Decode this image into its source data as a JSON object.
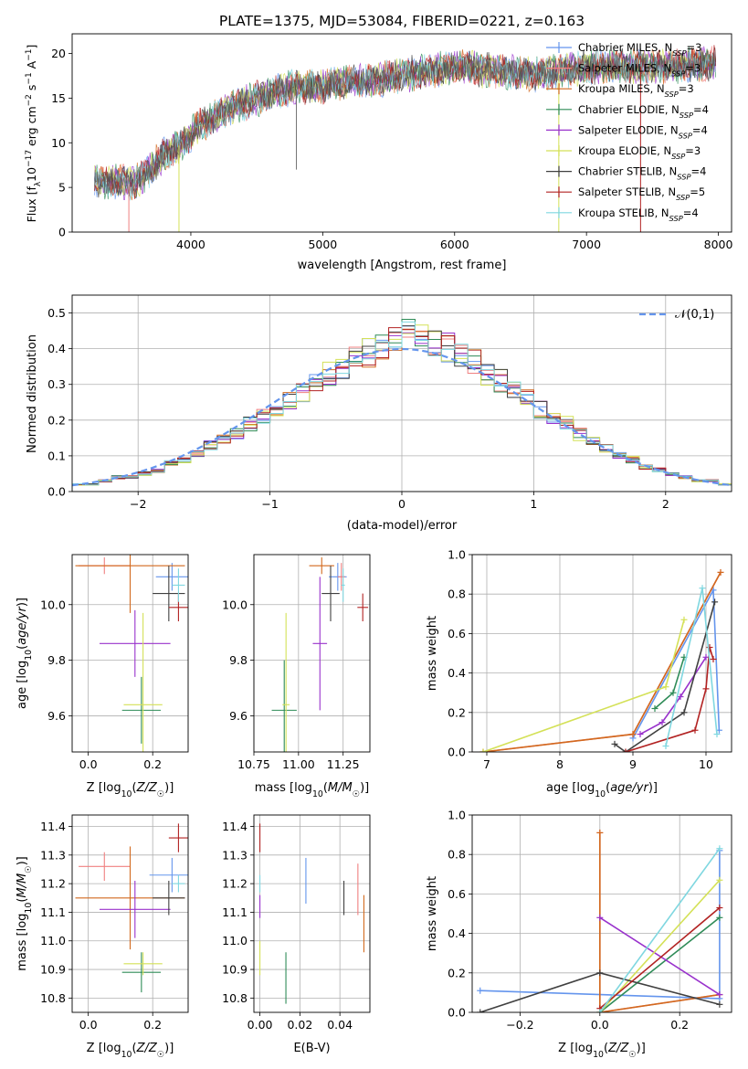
{
  "title": "PLATE=1375, MJD=53084, FIBERID=0221, z=0.163",
  "colors": {
    "chabrier_miles": "#6495ED",
    "salpeter_miles": "#F08080",
    "kroupa_miles": "#D2691E",
    "chabrier_elodie": "#2E8B57",
    "salpeter_elodie": "#9932CC",
    "kroupa_elodie": "#D4E157",
    "chabrier_stelib": "#404040",
    "salpeter_stelib": "#B22222",
    "kroupa_stelib": "#7FD7E0",
    "gauss": "#6495ED"
  },
  "chart_data": [
    {
      "id": "spectrum",
      "type": "line",
      "title": "PLATE=1375, MJD=53084, FIBERID=0221, z=0.163",
      "xlabel": "wavelength [Angstrom, rest frame]",
      "ylabel": "Flux [f_λ 10^-17 erg cm^-2 s^-1 A^-1]",
      "xlim": [
        3100,
        8100
      ],
      "ylim": [
        0,
        22.2
      ],
      "xticks": [
        4000,
        5000,
        6000,
        7000,
        8000
      ],
      "yticks": [
        0,
        5,
        10,
        15,
        20
      ],
      "grid": false,
      "legend_position": "right",
      "spectrum_trend": {
        "x": [
          3270,
          3350,
          3450,
          3550,
          3650,
          3750,
          3850,
          3950,
          4050,
          4150,
          4300,
          4450,
          4600,
          4800,
          5000,
          5200,
          5400,
          5600,
          5800,
          6000,
          6200,
          6400,
          6600,
          6800,
          7000,
          7200,
          7400,
          7600,
          7800,
          7980
        ],
        "y": [
          6.0,
          5.4,
          5.8,
          5.3,
          6.4,
          8.0,
          9.2,
          10.0,
          11.8,
          12.5,
          14.0,
          14.6,
          15.5,
          16.3,
          16.3,
          16.8,
          17.0,
          17.6,
          18.0,
          18.5,
          18.2,
          17.9,
          17.7,
          18.0,
          18.4,
          18.6,
          18.5,
          18.6,
          18.7,
          18.9
        ]
      },
      "series": [
        {
          "name": "Chabrier MILES, N_SSP=3",
          "color_key": "chabrier_miles"
        },
        {
          "name": "Salpeter MILES, N_SSP=3",
          "color_key": "salpeter_miles"
        },
        {
          "name": "Kroupa MILES, N_SSP=3",
          "color_key": "kroupa_miles"
        },
        {
          "name": "Chabrier ELODIE, N_SSP=4",
          "color_key": "chabrier_elodie"
        },
        {
          "name": "Salpeter ELODIE, N_SSP=4",
          "color_key": "salpeter_elodie"
        },
        {
          "name": "Kroupa ELODIE, N_SSP=3",
          "color_key": "kroupa_elodie"
        },
        {
          "name": "Chabrier STELIB, N_SSP=4",
          "color_key": "chabrier_stelib"
        },
        {
          "name": "Salpeter STELIB, N_SSP=5",
          "color_key": "salpeter_stelib"
        },
        {
          "name": "Kroupa STELIB, N_SSP=4",
          "color_key": "kroupa_stelib"
        }
      ]
    },
    {
      "id": "residuals",
      "type": "histogram",
      "xlabel": "(data-model)/error",
      "ylabel": "Normed distribution",
      "xlim": [
        -2.5,
        2.5
      ],
      "ylim": [
        0,
        0.55
      ],
      "xticks": [
        -2,
        -1,
        0,
        1,
        2
      ],
      "yticks": [
        0.0,
        0.1,
        0.2,
        0.3,
        0.4,
        0.5
      ],
      "grid": true,
      "legend": "𝒩(0,1)",
      "legend_position": "top-right",
      "bins": [
        -2.5,
        -2.4,
        -2.3,
        -2.2,
        -2.1,
        -2.0,
        -1.9,
        -1.8,
        -1.7,
        -1.6,
        -1.5,
        -1.4,
        -1.3,
        -1.2,
        -1.1,
        -1.0,
        -0.9,
        -0.8,
        -0.7,
        -0.6,
        -0.5,
        -0.4,
        -0.3,
        -0.2,
        -0.1,
        0.0,
        0.1,
        0.2,
        0.3,
        0.4,
        0.5,
        0.6,
        0.7,
        0.8,
        0.9,
        1.0,
        1.1,
        1.2,
        1.3,
        1.4,
        1.5,
        1.6,
        1.7,
        1.8,
        1.9,
        2.0,
        2.1,
        2.2,
        2.3,
        2.4,
        2.5
      ],
      "density": [
        0.02,
        0.02,
        0.03,
        0.04,
        0.04,
        0.05,
        0.06,
        0.08,
        0.09,
        0.11,
        0.13,
        0.15,
        0.16,
        0.19,
        0.21,
        0.23,
        0.26,
        0.28,
        0.3,
        0.33,
        0.35,
        0.37,
        0.39,
        0.41,
        0.43,
        0.45,
        0.43,
        0.41,
        0.4,
        0.38,
        0.36,
        0.33,
        0.31,
        0.28,
        0.26,
        0.23,
        0.21,
        0.19,
        0.16,
        0.14,
        0.12,
        0.1,
        0.09,
        0.07,
        0.06,
        0.05,
        0.04,
        0.03,
        0.03,
        0.02
      ]
    },
    {
      "id": "age_vs_Z",
      "type": "errorbar",
      "xlabel": "Z [log10(Z/Z☉)]",
      "ylabel": "age [log10(age/yr)]",
      "xlim": [
        -0.05,
        0.31
      ],
      "ylim": [
        9.47,
        10.18
      ],
      "xticks": [
        0.0,
        0.2
      ],
      "xticklabels": [
        "0.0",
        "0.2"
      ],
      "yticks": [
        9.6,
        9.8,
        10.0
      ],
      "grid": true,
      "points": [
        {
          "color_key": "chabrier_miles",
          "x": 0.26,
          "y": 10.1,
          "xerr": 0.05,
          "yerr": 0.05
        },
        {
          "color_key": "salpeter_miles",
          "x": 0.05,
          "y": 10.14,
          "xerr": 0.08,
          "yerr": 0.03
        },
        {
          "color_key": "kroupa_miles",
          "x": 0.13,
          "y": 10.14,
          "xerr": 0.17,
          "yerr": 0.17
        },
        {
          "color_key": "chabrier_elodie",
          "x": 0.165,
          "y": 9.62,
          "xerr": 0.06,
          "yerr": 0.12
        },
        {
          "color_key": "salpeter_elodie",
          "x": 0.145,
          "y": 9.86,
          "xerr": 0.11,
          "yerr": 0.12
        },
        {
          "color_key": "kroupa_elodie",
          "x": 0.17,
          "y": 9.64,
          "xerr": 0.06,
          "yerr": 0.33
        },
        {
          "color_key": "chabrier_stelib",
          "x": 0.25,
          "y": 10.04,
          "xerr": 0.05,
          "yerr": 0.1
        },
        {
          "color_key": "salpeter_stelib",
          "x": 0.28,
          "y": 9.99,
          "xerr": 0.03,
          "yerr": 0.05
        },
        {
          "color_key": "kroupa_stelib",
          "x": 0.28,
          "y": 10.07,
          "xerr": 0.02,
          "yerr": 0.06
        }
      ]
    },
    {
      "id": "age_vs_mass",
      "type": "errorbar",
      "xlabel": "mass [log10(M/M☉)]",
      "xlim": [
        10.75,
        11.4
      ],
      "ylim": [
        9.47,
        10.18
      ],
      "xticks": [
        10.75,
        11.0,
        11.25
      ],
      "xticklabels": [
        "10.75",
        "11.00",
        "11.25"
      ],
      "yticks": [
        9.6,
        9.8,
        10.0
      ],
      "grid": true,
      "points": [
        {
          "color_key": "chabrier_miles",
          "x": 11.22,
          "y": 10.1,
          "xerr": 0.05,
          "yerr": 0.05
        },
        {
          "color_key": "salpeter_miles",
          "x": 11.24,
          "y": 10.1,
          "xerr": 0.02,
          "yerr": 0.05
        },
        {
          "color_key": "kroupa_miles",
          "x": 11.13,
          "y": 10.14,
          "xerr": 0.07,
          "yerr": 0.03
        },
        {
          "color_key": "chabrier_elodie",
          "x": 10.92,
          "y": 9.62,
          "xerr": 0.07,
          "yerr": 0.18
        },
        {
          "color_key": "salpeter_elodie",
          "x": 11.12,
          "y": 9.86,
          "xerr": 0.04,
          "yerr": 0.24
        },
        {
          "color_key": "kroupa_elodie",
          "x": 10.93,
          "y": 9.64,
          "xerr": 0.02,
          "yerr": 0.33
        },
        {
          "color_key": "chabrier_stelib",
          "x": 11.18,
          "y": 10.04,
          "xerr": 0.05,
          "yerr": 0.1
        },
        {
          "color_key": "salpeter_stelib",
          "x": 11.36,
          "y": 9.99,
          "xerr": 0.03,
          "yerr": 0.05
        },
        {
          "color_key": "kroupa_stelib",
          "x": 11.25,
          "y": 10.07,
          "xerr": 0.01,
          "yerr": 0.06
        }
      ]
    },
    {
      "id": "weight_vs_age",
      "type": "line",
      "xlabel": "age [log10(age/yr)]",
      "ylabel": "mass weight",
      "xlim": [
        6.8,
        10.35
      ],
      "ylim": [
        0,
        1.0
      ],
      "xticks": [
        7,
        8,
        9,
        10
      ],
      "yticks": [
        0.0,
        0.2,
        0.4,
        0.6,
        0.8,
        1.0
      ],
      "grid": true,
      "series": [
        {
          "color_key": "chabrier_miles",
          "x": [
            9.0,
            10.1,
            10.18
          ],
          "y": [
            0.07,
            0.82,
            0.11
          ]
        },
        {
          "color_key": "salpeter_miles",
          "x": [
            6.95,
            9.0,
            10.2
          ],
          "y": [
            0.0,
            0.09,
            0.91
          ]
        },
        {
          "color_key": "kroupa_miles",
          "x": [
            6.95,
            9.0,
            10.2
          ],
          "y": [
            0.0,
            0.09,
            0.91
          ]
        },
        {
          "color_key": "chabrier_elodie",
          "x": [
            9.3,
            9.55,
            9.7
          ],
          "y": [
            0.22,
            0.3,
            0.48
          ]
        },
        {
          "color_key": "salpeter_elodie",
          "x": [
            9.1,
            9.4,
            9.65,
            10.0
          ],
          "y": [
            0.09,
            0.15,
            0.28,
            0.48
          ]
        },
        {
          "color_key": "kroupa_elodie",
          "x": [
            6.95,
            9.45,
            9.7
          ],
          "y": [
            0.0,
            0.33,
            0.67
          ]
        },
        {
          "color_key": "chabrier_stelib",
          "x": [
            8.75,
            8.9,
            9.7,
            10.12
          ],
          "y": [
            0.04,
            0.0,
            0.2,
            0.76
          ]
        },
        {
          "color_key": "salpeter_stelib",
          "x": [
            8.9,
            9.85,
            10.0,
            10.05,
            10.1
          ],
          "y": [
            0.0,
            0.11,
            0.32,
            0.53,
            0.47
          ]
        },
        {
          "color_key": "kroupa_stelib",
          "x": [
            9.45,
            9.95,
            10.15
          ],
          "y": [
            0.03,
            0.83,
            0.09
          ]
        }
      ]
    },
    {
      "id": "mass_vs_Z",
      "type": "errorbar",
      "xlabel": "Z [log10(Z/Z☉)]",
      "ylabel": "mass [log10(M/M☉)]",
      "xlim": [
        -0.05,
        0.31
      ],
      "ylim": [
        10.75,
        11.44
      ],
      "xticks": [
        0.0,
        0.2
      ],
      "xticklabels": [
        "0.0",
        "0.2"
      ],
      "yticks": [
        10.8,
        10.9,
        11.0,
        11.1,
        11.2,
        11.3,
        11.4
      ],
      "grid": true,
      "points": [
        {
          "color_key": "chabrier_miles",
          "x": 0.26,
          "y": 11.23,
          "xerr": 0.07,
          "yerr": 0.06
        },
        {
          "color_key": "salpeter_miles",
          "x": 0.05,
          "y": 11.26,
          "xerr": 0.08,
          "yerr": 0.05
        },
        {
          "color_key": "kroupa_miles",
          "x": 0.13,
          "y": 11.15,
          "xerr": 0.17,
          "yerr": 0.18
        },
        {
          "color_key": "chabrier_elodie",
          "x": 0.165,
          "y": 10.89,
          "xerr": 0.06,
          "yerr": 0.07
        },
        {
          "color_key": "salpeter_elodie",
          "x": 0.145,
          "y": 11.11,
          "xerr": 0.11,
          "yerr": 0.1
        },
        {
          "color_key": "kroupa_elodie",
          "x": 0.17,
          "y": 10.92,
          "xerr": 0.06,
          "yerr": 0.04
        },
        {
          "color_key": "chabrier_stelib",
          "x": 0.25,
          "y": 11.15,
          "xerr": 0.05,
          "yerr": 0.06
        },
        {
          "color_key": "salpeter_stelib",
          "x": 0.28,
          "y": 11.36,
          "xerr": 0.03,
          "yerr": 0.05
        },
        {
          "color_key": "kroupa_stelib",
          "x": 0.28,
          "y": 11.2,
          "xerr": 0.02,
          "yerr": 0.03
        }
      ]
    },
    {
      "id": "mass_vs_ebv",
      "type": "errorbar",
      "xlabel": "E(B-V)",
      "xlim": [
        -0.003,
        0.055
      ],
      "ylim": [
        10.75,
        11.44
      ],
      "xticks": [
        0.0,
        0.02,
        0.04
      ],
      "xticklabels": [
        "0.00",
        "0.02",
        "0.04"
      ],
      "yticks": [
        10.8,
        10.9,
        11.0,
        11.1,
        11.2,
        11.3,
        11.4
      ],
      "grid": true,
      "points": [
        {
          "color_key": "chabrier_miles",
          "x": 0.023,
          "y": 11.21,
          "xerr": 0,
          "yerr": 0.08
        },
        {
          "color_key": "salpeter_miles",
          "x": 0.049,
          "y": 11.18,
          "xerr": 0,
          "yerr": 0.09
        },
        {
          "color_key": "kroupa_miles",
          "x": 0.052,
          "y": 11.06,
          "xerr": 0,
          "yerr": 0.1
        },
        {
          "color_key": "chabrier_elodie",
          "x": 0.013,
          "y": 10.87,
          "xerr": 0,
          "yerr": 0.09
        },
        {
          "color_key": "salpeter_elodie",
          "x": 0.0,
          "y": 11.12,
          "xerr": 0,
          "yerr": 0.04
        },
        {
          "color_key": "kroupa_elodie",
          "x": 0.0,
          "y": 10.94,
          "xerr": 0,
          "yerr": 0.06
        },
        {
          "color_key": "chabrier_stelib",
          "x": 0.042,
          "y": 11.15,
          "xerr": 0,
          "yerr": 0.06
        },
        {
          "color_key": "salpeter_stelib",
          "x": 0.0,
          "y": 11.36,
          "xerr": 0,
          "yerr": 0.05
        },
        {
          "color_key": "kroupa_stelib",
          "x": 0.0,
          "y": 11.2,
          "xerr": 0,
          "yerr": 0.03
        }
      ]
    },
    {
      "id": "weight_vs_Z",
      "type": "line",
      "xlabel": "Z [log10(Z/Z☉)]",
      "ylabel": "mass weight",
      "xlim": [
        -0.32,
        0.33
      ],
      "ylim": [
        0,
        1.0
      ],
      "xticks": [
        -0.2,
        0.0,
        0.2
      ],
      "xticklabels": [
        "−0.2",
        "0.0",
        "0.2"
      ],
      "yticks": [
        0.0,
        0.2,
        0.4,
        0.6,
        0.8,
        1.0
      ],
      "grid": true,
      "series": [
        {
          "color_key": "chabrier_miles",
          "x": [
            -0.3,
            0.3,
            0.3
          ],
          "y": [
            0.11,
            0.07,
            0.82
          ]
        },
        {
          "color_key": "salpeter_miles",
          "x": [
            0.0,
            0.0,
            0.3
          ],
          "y": [
            0.91,
            0.0,
            0.09
          ]
        },
        {
          "color_key": "kroupa_miles",
          "x": [
            0.0,
            0.0,
            0.3
          ],
          "y": [
            0.91,
            0.0,
            0.09
          ]
        },
        {
          "color_key": "chabrier_elodie",
          "x": [
            0.0,
            0.3
          ],
          "y": [
            0.0,
            0.48
          ]
        },
        {
          "color_key": "salpeter_elodie",
          "x": [
            0.0,
            0.3
          ],
          "y": [
            0.48,
            0.09
          ]
        },
        {
          "color_key": "kroupa_elodie",
          "x": [
            0.0,
            0.3
          ],
          "y": [
            0.0,
            0.67
          ]
        },
        {
          "color_key": "chabrier_stelib",
          "x": [
            -0.3,
            0.0,
            0.3
          ],
          "y": [
            0.0,
            0.2,
            0.04
          ]
        },
        {
          "color_key": "salpeter_stelib",
          "x": [
            0.0,
            0.3
          ],
          "y": [
            0.02,
            0.53
          ]
        },
        {
          "color_key": "kroupa_stelib",
          "x": [
            0.0,
            0.3
          ],
          "y": [
            0.0,
            0.83
          ]
        }
      ]
    }
  ]
}
